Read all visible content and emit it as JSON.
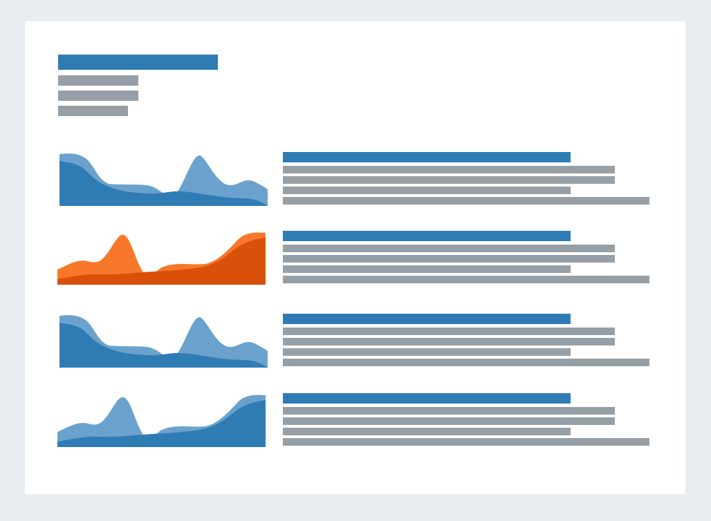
{
  "colors": {
    "background": "#e9edf2",
    "card": "#ffffff",
    "accent_blue": "#2f7cb5",
    "accent_blue_light": "#6aa2cd",
    "accent_orange": "#d9500b",
    "accent_orange_light": "#f7782b",
    "placeholder_grey": "#979fa6"
  },
  "header": {
    "title_placeholder_lines": 1,
    "subtitle_placeholder_lines": 3
  },
  "rows": [
    {
      "thumbnail": "area-wave-a",
      "theme": "blue",
      "text_placeholder_lines": 5
    },
    {
      "thumbnail": "area-wave-b",
      "theme": "orange",
      "text_placeholder_lines": 5
    },
    {
      "thumbnail": "area-wave-a",
      "theme": "blue",
      "text_placeholder_lines": 5
    },
    {
      "thumbnail": "area-wave-b",
      "theme": "blue",
      "text_placeholder_lines": 5
    }
  ]
}
